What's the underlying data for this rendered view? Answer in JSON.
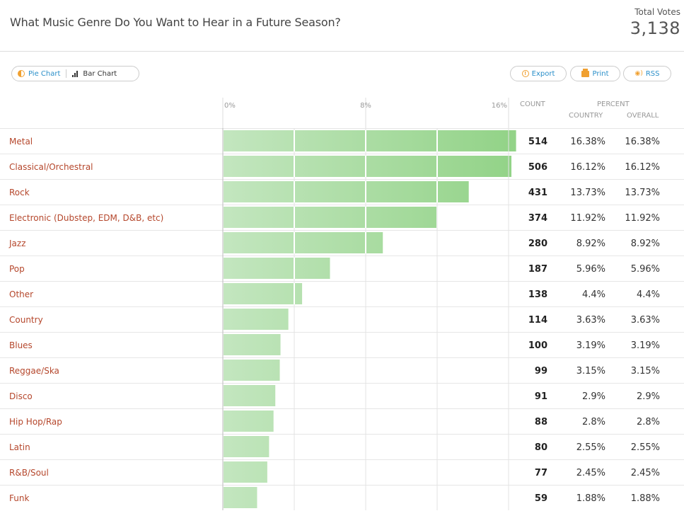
{
  "header": {
    "title": "What Music Genre Do You Want to Hear in a Future Season?",
    "total_label": "Total Votes",
    "total_value": "3,138"
  },
  "toolbar": {
    "pie_label": "Pie Chart",
    "bar_label": "Bar Chart",
    "export_label": "Export",
    "print_label": "Print",
    "rss_label": "RSS"
  },
  "columns": {
    "count": "COUNT",
    "percent": "PERCENT",
    "country": "COUNTRY",
    "overall": "OVERALL"
  },
  "colors": {
    "bar_light": "#c3e6bf",
    "bar_dark": "#93d388",
    "label": "#b5472c",
    "accent_blue": "#2a8fc9",
    "accent_orange": "#f0a030"
  },
  "chart_data": {
    "type": "bar",
    "orientation": "horizontal",
    "xlim": [
      0,
      16
    ],
    "x_ticks": [
      "0%",
      "8%",
      "16%"
    ],
    "categories": [
      "Metal",
      "Classical/Orchestral",
      "Rock",
      "Electronic (Dubstep, EDM, D&B, etc)",
      "Jazz",
      "Pop",
      "Other",
      "Country",
      "Blues",
      "Reggae/Ska",
      "Disco",
      "Hip Hop/Rap",
      "Latin",
      "R&B/Soul",
      "Funk"
    ],
    "values": [
      16.38,
      16.12,
      13.73,
      11.92,
      8.92,
      5.96,
      4.4,
      3.63,
      3.19,
      3.15,
      2.9,
      2.8,
      2.55,
      2.45,
      1.88
    ],
    "counts": [
      514,
      506,
      431,
      374,
      280,
      187,
      138,
      114,
      100,
      99,
      91,
      88,
      80,
      77,
      59
    ],
    "country_pct": [
      "16.38%",
      "16.12%",
      "13.73%",
      "11.92%",
      "8.92%",
      "5.96%",
      "4.4%",
      "3.63%",
      "3.19%",
      "3.15%",
      "2.9%",
      "2.8%",
      "2.55%",
      "2.45%",
      "1.88%"
    ],
    "overall_pct": [
      "16.38%",
      "16.12%",
      "13.73%",
      "11.92%",
      "8.92%",
      "5.96%",
      "4.4%",
      "3.63%",
      "3.19%",
      "3.15%",
      "2.9%",
      "2.8%",
      "2.55%",
      "2.45%",
      "1.88%"
    ]
  }
}
